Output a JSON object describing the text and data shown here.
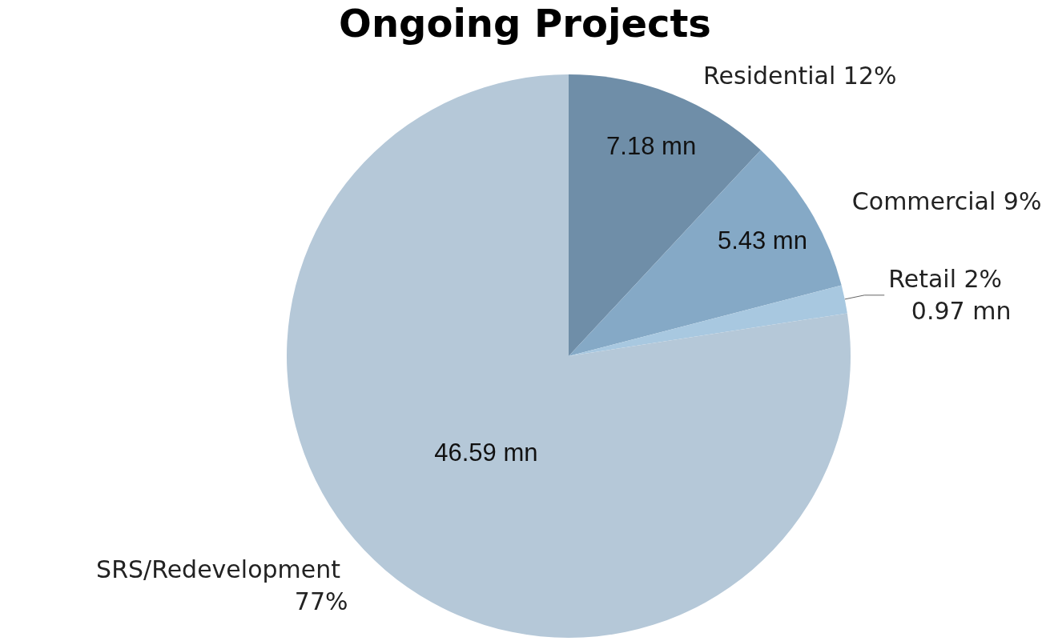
{
  "chart_data": {
    "type": "pie",
    "title": "Ongoing Projects",
    "categories": [
      "Residential 12%",
      "Commercial 9%",
      "Retail 2%",
      "SRS/Redevelopment 77%"
    ],
    "values": [
      7.18,
      5.43,
      0.97,
      46.59
    ],
    "colors": [
      "#6f8ea8",
      "#85a9c6",
      "#a8c8e0",
      "#b5c8d8"
    ],
    "value_labels": [
      "7.18 mn",
      "5.43 mn",
      "0.97 mn",
      "46.59 mn"
    ],
    "legend": false
  }
}
